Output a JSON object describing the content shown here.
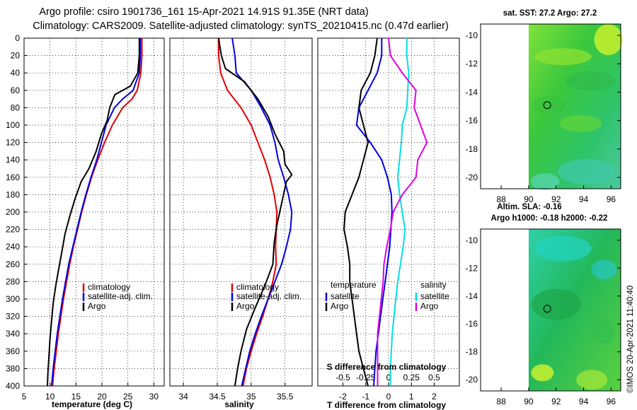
{
  "title_line1": "Argo profile: csiro 1901736_161 15-Apr-2021 14.91S 91.35E (NRT data)",
  "title_line2": "Climatology: CARS2009. Satellite-adjusted climatology: synTS_20210415.nc (0.47d earlier)",
  "timestamp": "©IMOS 20-Apr-2021 11:40:40",
  "colors": {
    "climatology": "#e00000",
    "satellite": "#0000dd",
    "argo": "#000000",
    "sat_salinity": "#00e0e0",
    "argo_salinity_diff": "#e000e0"
  },
  "chart_data": [
    {
      "id": "temperature",
      "type": "line",
      "xlabel": "temperature (deg C)",
      "ylabel": "",
      "xlim": [
        5,
        32
      ],
      "ylim": [
        400,
        0
      ],
      "xticks": [
        "5",
        "10",
        "15",
        "20",
        "25",
        "30"
      ],
      "yticks": [
        "0",
        "20",
        "40",
        "60",
        "80",
        "100",
        "120",
        "140",
        "160",
        "180",
        "200",
        "220",
        "240",
        "260",
        "280",
        "300",
        "320",
        "340",
        "360",
        "380",
        "400"
      ],
      "legend": [
        "climatology",
        "satellite-adj. clim.",
        "Argo"
      ],
      "series": [
        {
          "name": "climatology",
          "color": "#e00000",
          "points": [
            [
              27.7,
              0
            ],
            [
              27.7,
              20
            ],
            [
              27.5,
              40
            ],
            [
              26.8,
              60
            ],
            [
              25.8,
              70
            ],
            [
              24.0,
              80
            ],
            [
              22.0,
              100
            ],
            [
              20.5,
              120
            ],
            [
              19.2,
              140
            ],
            [
              18.0,
              160
            ],
            [
              17.0,
              180
            ],
            [
              16.1,
              200
            ],
            [
              15.3,
              220
            ],
            [
              14.5,
              240
            ],
            [
              13.8,
              260
            ],
            [
              13.2,
              280
            ],
            [
              12.6,
              300
            ],
            [
              12.1,
              320
            ],
            [
              11.6,
              340
            ],
            [
              11.2,
              360
            ],
            [
              10.8,
              380
            ],
            [
              10.5,
              400
            ]
          ]
        },
        {
          "name": "satellite-adj. clim.",
          "color": "#0000dd",
          "points": [
            [
              27.4,
              0
            ],
            [
              27.4,
              20
            ],
            [
              27.2,
              40
            ],
            [
              26.0,
              60
            ],
            [
              24.0,
              70
            ],
            [
              22.4,
              80
            ],
            [
              20.8,
              100
            ],
            [
              19.9,
              120
            ],
            [
              19.0,
              140
            ],
            [
              17.9,
              160
            ],
            [
              16.9,
              180
            ],
            [
              16.0,
              200
            ],
            [
              15.2,
              220
            ],
            [
              14.4,
              240
            ],
            [
              13.6,
              260
            ],
            [
              13.0,
              280
            ],
            [
              12.4,
              300
            ],
            [
              11.9,
              320
            ],
            [
              11.4,
              340
            ],
            [
              11.0,
              360
            ],
            [
              10.6,
              380
            ],
            [
              10.3,
              400
            ]
          ]
        },
        {
          "name": "Argo",
          "color": "#000000",
          "points": [
            [
              27.2,
              0
            ],
            [
              27.2,
              20
            ],
            [
              26.9,
              40
            ],
            [
              25.5,
              55
            ],
            [
              22.5,
              65
            ],
            [
              21.5,
              80
            ],
            [
              21.0,
              95
            ],
            [
              19.9,
              110
            ],
            [
              18.9,
              130
            ],
            [
              17.5,
              150
            ],
            [
              16.0,
              165
            ],
            [
              14.8,
              185
            ],
            [
              13.8,
              205
            ],
            [
              12.9,
              225
            ],
            [
              12.3,
              245
            ],
            [
              11.7,
              265
            ],
            [
              11.1,
              285
            ],
            [
              10.6,
              305
            ],
            [
              10.3,
              325
            ],
            [
              10.0,
              345
            ],
            [
              9.8,
              365
            ],
            [
              9.6,
              385
            ],
            [
              9.5,
              400
            ]
          ]
        }
      ]
    },
    {
      "id": "salinity",
      "type": "line",
      "xlabel": "salinity",
      "ylabel": "",
      "xlim": [
        33.8,
        35.9
      ],
      "ylim": [
        400,
        0
      ],
      "xticks": [
        "34",
        "34.5",
        "35",
        "35.5"
      ],
      "legend": [
        "climatology",
        "satellite-adj. clim.",
        "Argo"
      ],
      "series": [
        {
          "name": "climatology",
          "color": "#e00000",
          "points": [
            [
              34.52,
              0
            ],
            [
              34.52,
              20
            ],
            [
              34.55,
              40
            ],
            [
              34.65,
              60
            ],
            [
              34.85,
              80
            ],
            [
              35.0,
              100
            ],
            [
              35.1,
              120
            ],
            [
              35.2,
              140
            ],
            [
              35.28,
              160
            ],
            [
              35.34,
              180
            ],
            [
              35.38,
              200
            ],
            [
              35.37,
              220
            ],
            [
              35.36,
              240
            ],
            [
              35.37,
              260
            ],
            [
              35.32,
              280
            ],
            [
              35.25,
              300
            ],
            [
              35.17,
              320
            ],
            [
              35.08,
              340
            ],
            [
              35.0,
              360
            ],
            [
              34.93,
              380
            ],
            [
              34.88,
              400
            ]
          ]
        },
        {
          "name": "satellite-adj. clim.",
          "color": "#0000dd",
          "points": [
            [
              34.72,
              0
            ],
            [
              34.76,
              20
            ],
            [
              34.78,
              40
            ],
            [
              35.0,
              60
            ],
            [
              35.15,
              80
            ],
            [
              35.28,
              100
            ],
            [
              35.35,
              120
            ],
            [
              35.4,
              140
            ],
            [
              35.48,
              160
            ],
            [
              35.55,
              180
            ],
            [
              35.6,
              200
            ],
            [
              35.58,
              220
            ],
            [
              35.52,
              240
            ],
            [
              35.45,
              260
            ],
            [
              35.35,
              280
            ],
            [
              35.25,
              300
            ],
            [
              35.15,
              320
            ],
            [
              35.06,
              340
            ],
            [
              34.98,
              360
            ],
            [
              34.92,
              380
            ],
            [
              34.86,
              400
            ]
          ]
        },
        {
          "name": "Argo",
          "color": "#000000",
          "points": [
            [
              34.52,
              0
            ],
            [
              34.56,
              20
            ],
            [
              34.62,
              35
            ],
            [
              34.9,
              50
            ],
            [
              35.1,
              70
            ],
            [
              35.25,
              90
            ],
            [
              35.35,
              110
            ],
            [
              35.48,
              130
            ],
            [
              35.5,
              145
            ],
            [
              35.6,
              157
            ],
            [
              35.52,
              165
            ],
            [
              35.45,
              190
            ],
            [
              35.38,
              215
            ],
            [
              35.34,
              235
            ],
            [
              35.32,
              260
            ],
            [
              35.2,
              285
            ],
            [
              35.06,
              310
            ],
            [
              34.93,
              335
            ],
            [
              34.85,
              360
            ],
            [
              34.8,
              380
            ],
            [
              34.76,
              400
            ]
          ]
        }
      ]
    },
    {
      "id": "difference",
      "type": "line",
      "xlabel": "T difference from climatology",
      "x2label": "S difference from climatology",
      "xlim": [
        -3.1,
        3.1
      ],
      "x2lim": [
        -0.775,
        0.775
      ],
      "ylim": [
        400,
        0
      ],
      "xticks": [
        "-2",
        "-1",
        "0",
        "1",
        "2"
      ],
      "x2ticks": [
        "-0.5",
        "-0.25",
        "0",
        "0.25",
        "0.5"
      ],
      "legend_temperature_title": "temperature",
      "legend_salinity_title": "salinity",
      "legend_temperature": [
        "satellite",
        "Argo"
      ],
      "legend_salinity": [
        "satellite",
        "Argo"
      ],
      "series": [
        {
          "name": "T satellite",
          "axis": "T",
          "color": "#0000dd",
          "points": [
            [
              -0.3,
              0
            ],
            [
              -0.3,
              20
            ],
            [
              -0.5,
              40
            ],
            [
              -0.9,
              60
            ],
            [
              -1.3,
              80
            ],
            [
              -1.4,
              100
            ],
            [
              -0.8,
              120
            ],
            [
              -0.3,
              140
            ],
            [
              -0.05,
              160
            ],
            [
              0.12,
              180
            ],
            [
              0.15,
              200
            ],
            [
              0.1,
              220
            ],
            [
              0.05,
              240
            ],
            [
              -0.05,
              260
            ],
            [
              -0.15,
              280
            ],
            [
              -0.25,
              300
            ],
            [
              -0.35,
              320
            ],
            [
              -0.45,
              340
            ],
            [
              -0.55,
              360
            ],
            [
              -0.6,
              380
            ],
            [
              -0.65,
              400
            ]
          ]
        },
        {
          "name": "T Argo",
          "axis": "T",
          "color": "#000000",
          "points": [
            [
              -0.5,
              0
            ],
            [
              -0.6,
              20
            ],
            [
              -0.8,
              40
            ],
            [
              -1.2,
              60
            ],
            [
              -1.3,
              80
            ],
            [
              -1.1,
              100
            ],
            [
              -0.9,
              120
            ],
            [
              -1.1,
              140
            ],
            [
              -1.3,
              160
            ],
            [
              -1.6,
              180
            ],
            [
              -1.9,
              200
            ],
            [
              -1.95,
              220
            ],
            [
              -1.8,
              240
            ],
            [
              -1.7,
              260
            ],
            [
              -1.7,
              280
            ],
            [
              -1.6,
              300
            ],
            [
              -1.5,
              320
            ],
            [
              -1.4,
              340
            ],
            [
              -1.3,
              360
            ],
            [
              -1.1,
              380
            ],
            [
              -0.9,
              400
            ]
          ]
        },
        {
          "name": "S satellite",
          "axis": "S",
          "color": "#00e0e0",
          "points": [
            [
              0.2,
              0
            ],
            [
              0.2,
              20
            ],
            [
              0.22,
              40
            ],
            [
              0.2,
              80
            ],
            [
              0.15,
              100
            ],
            [
              0.14,
              120
            ],
            [
              0.12,
              140
            ],
            [
              0.1,
              160
            ],
            [
              0.12,
              180
            ],
            [
              0.15,
              200
            ],
            [
              0.18,
              220
            ],
            [
              0.16,
              240
            ],
            [
              0.13,
              260
            ],
            [
              0.1,
              280
            ],
            [
              0.08,
              300
            ],
            [
              0.06,
              320
            ],
            [
              0.04,
              340
            ],
            [
              0.03,
              360
            ],
            [
              0.02,
              380
            ],
            [
              0.02,
              400
            ]
          ]
        },
        {
          "name": "S Argo",
          "axis": "S",
          "color": "#e000e0",
          "points": [
            [
              0.0,
              0
            ],
            [
              0.02,
              20
            ],
            [
              0.15,
              40
            ],
            [
              0.3,
              60
            ],
            [
              0.28,
              80
            ],
            [
              0.35,
              100
            ],
            [
              0.42,
              120
            ],
            [
              0.32,
              140
            ],
            [
              0.3,
              160
            ],
            [
              0.15,
              180
            ],
            [
              0.05,
              200
            ],
            [
              0.02,
              220
            ],
            [
              -0.02,
              240
            ],
            [
              -0.05,
              260
            ],
            [
              -0.06,
              280
            ],
            [
              -0.08,
              300
            ],
            [
              -0.1,
              320
            ],
            [
              -0.12,
              340
            ],
            [
              -0.12,
              360
            ],
            [
              -0.12,
              380
            ],
            [
              -0.12,
              400
            ]
          ]
        }
      ]
    },
    {
      "id": "sst_map",
      "type": "heatmap",
      "title": "sat. SST: 27.2 Argo: 27.2",
      "xticks": [
        "88",
        "90",
        "92",
        "94",
        "96"
      ],
      "yticks": [
        "-10",
        "-12",
        "-14",
        "-16",
        "-18",
        "-20"
      ],
      "xlim": [
        86.5,
        96.7
      ],
      "ylim": [
        -20.8,
        -9.2
      ],
      "argo_position": [
        91.35,
        -14.91
      ]
    },
    {
      "id": "sla_map",
      "type": "heatmap",
      "title_line1": "Altim. SLA: -0.16",
      "title_line2": "Argo h1000: -0.18 h2000: -0.22",
      "xticks": [
        "88",
        "90",
        "92",
        "94",
        "96"
      ],
      "yticks": [
        "-10",
        "-12",
        "-14",
        "-16",
        "-18",
        "-20"
      ],
      "xlim": [
        86.5,
        96.7
      ],
      "ylim": [
        -20.8,
        -9.2
      ],
      "argo_position": [
        91.35,
        -14.91
      ]
    }
  ]
}
